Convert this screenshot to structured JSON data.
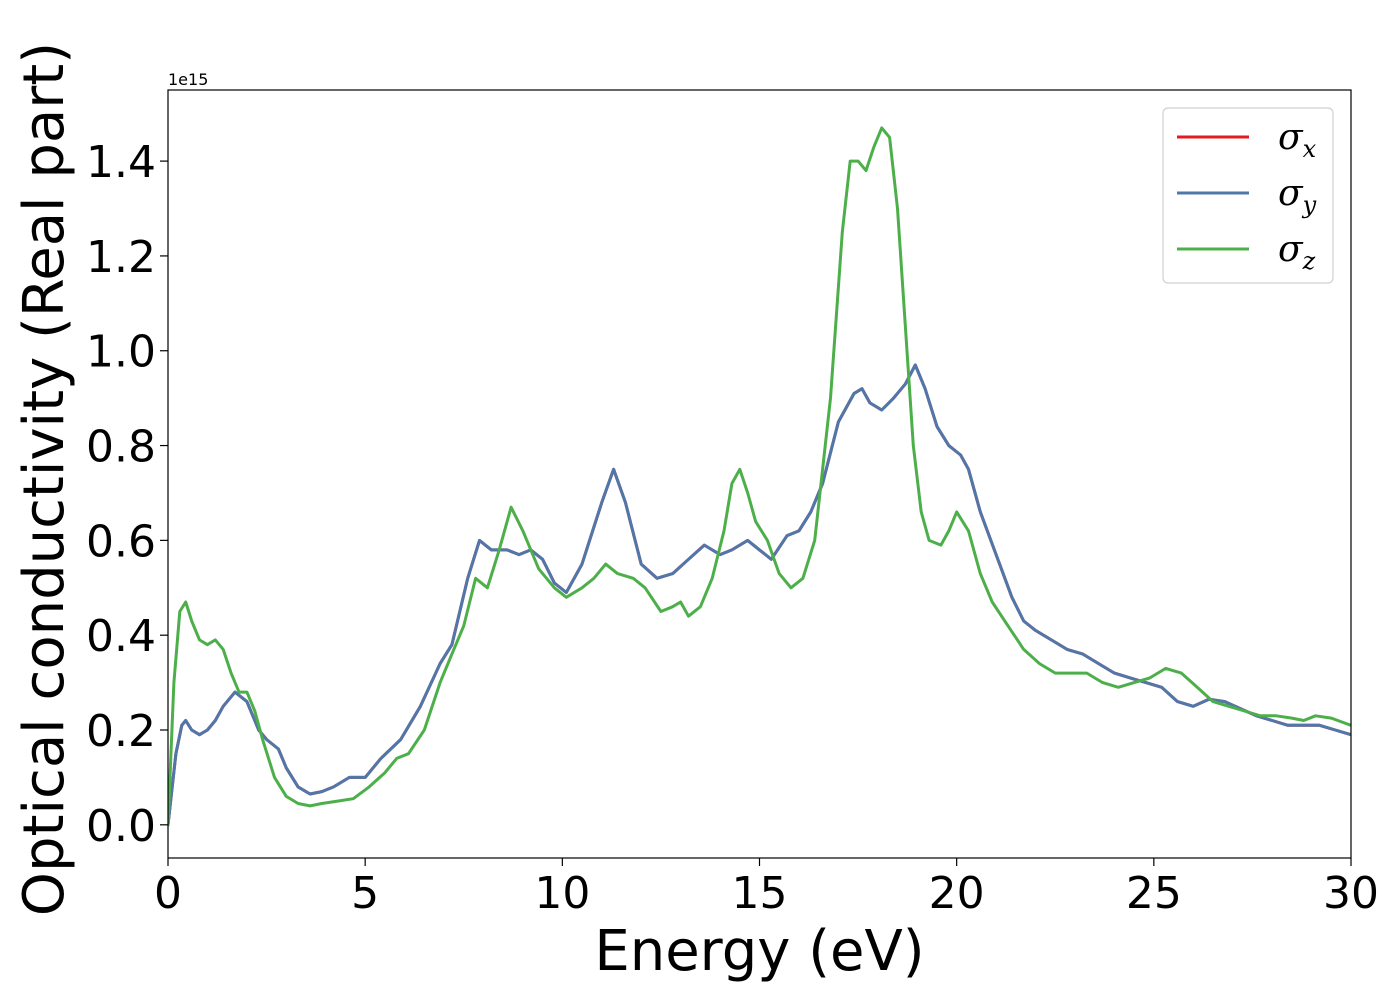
{
  "chart_data": {
    "type": "line",
    "xlabel": "Energy (eV)",
    "ylabel": "Optical conductivity (Real part)",
    "y_offset_label": "1e15",
    "xlim": [
      0,
      30
    ],
    "ylim": [
      -0.07,
      1.55
    ],
    "x_ticks": [
      0,
      5,
      10,
      15,
      20,
      25,
      30
    ],
    "x_tick_labels": [
      "0",
      "5",
      "10",
      "15",
      "20",
      "25",
      "30"
    ],
    "y_ticks": [
      0.0,
      0.2,
      0.4,
      0.6,
      0.8,
      1.0,
      1.2,
      1.4
    ],
    "y_tick_labels": [
      "0.0",
      "0.2",
      "0.4",
      "0.6",
      "0.8",
      "1.0",
      "1.2",
      "1.4"
    ],
    "grid": false,
    "legend_position": "top-right",
    "series": [
      {
        "name": "σx",
        "symbol": "σ",
        "subscript": "x",
        "color": "#e41a1c",
        "x": [
          0,
          0.2,
          0.35,
          0.45,
          0.6,
          0.8,
          1.0,
          1.2,
          1.4,
          1.7,
          2.0,
          2.3,
          2.5,
          2.8,
          3.0,
          3.3,
          3.6,
          3.9,
          4.2,
          4.6,
          5.0,
          5.4,
          5.9,
          6.4,
          6.9,
          7.2,
          7.6,
          7.9,
          8.2,
          8.6,
          8.9,
          9.2,
          9.5,
          9.8,
          10.1,
          10.5,
          11.0,
          11.3,
          11.6,
          12.0,
          12.4,
          12.8,
          13.2,
          13.6,
          14.0,
          14.3,
          14.7,
          15.0,
          15.3,
          15.7,
          16.0,
          16.3,
          16.6,
          17.0,
          17.4,
          17.6,
          17.8,
          18.1,
          18.4,
          18.7,
          18.95,
          19.2,
          19.5,
          19.8,
          20.1,
          20.3,
          20.6,
          21.0,
          21.4,
          21.7,
          22.0,
          22.4,
          22.8,
          23.2,
          23.6,
          24.0,
          24.4,
          24.8,
          25.2,
          25.6,
          26.0,
          26.4,
          26.8,
          27.2,
          27.6,
          28.0,
          28.4,
          28.8,
          29.2,
          29.6,
          30.0
        ],
        "y": [
          0.0,
          0.15,
          0.21,
          0.22,
          0.2,
          0.19,
          0.2,
          0.22,
          0.25,
          0.28,
          0.26,
          0.2,
          0.18,
          0.16,
          0.12,
          0.08,
          0.065,
          0.07,
          0.08,
          0.1,
          0.1,
          0.14,
          0.18,
          0.25,
          0.34,
          0.38,
          0.52,
          0.6,
          0.58,
          0.58,
          0.57,
          0.58,
          0.56,
          0.51,
          0.49,
          0.55,
          0.68,
          0.75,
          0.68,
          0.55,
          0.52,
          0.53,
          0.56,
          0.59,
          0.57,
          0.58,
          0.6,
          0.58,
          0.56,
          0.61,
          0.62,
          0.66,
          0.72,
          0.85,
          0.91,
          0.92,
          0.89,
          0.875,
          0.9,
          0.93,
          0.97,
          0.92,
          0.84,
          0.8,
          0.78,
          0.75,
          0.66,
          0.57,
          0.48,
          0.43,
          0.41,
          0.39,
          0.37,
          0.36,
          0.34,
          0.32,
          0.31,
          0.3,
          0.29,
          0.26,
          0.25,
          0.265,
          0.26,
          0.245,
          0.23,
          0.22,
          0.21,
          0.21,
          0.21,
          0.2,
          0.19
        ]
      },
      {
        "name": "σy",
        "symbol": "σ",
        "subscript": "y",
        "color": "#4f77aa",
        "x": [
          0,
          0.2,
          0.35,
          0.45,
          0.6,
          0.8,
          1.0,
          1.2,
          1.4,
          1.7,
          2.0,
          2.3,
          2.5,
          2.8,
          3.0,
          3.3,
          3.6,
          3.9,
          4.2,
          4.6,
          5.0,
          5.4,
          5.9,
          6.4,
          6.9,
          7.2,
          7.6,
          7.9,
          8.2,
          8.6,
          8.9,
          9.2,
          9.5,
          9.8,
          10.1,
          10.5,
          11.0,
          11.3,
          11.6,
          12.0,
          12.4,
          12.8,
          13.2,
          13.6,
          14.0,
          14.3,
          14.7,
          15.0,
          15.3,
          15.7,
          16.0,
          16.3,
          16.6,
          17.0,
          17.4,
          17.6,
          17.8,
          18.1,
          18.4,
          18.7,
          18.95,
          19.2,
          19.5,
          19.8,
          20.1,
          20.3,
          20.6,
          21.0,
          21.4,
          21.7,
          22.0,
          22.4,
          22.8,
          23.2,
          23.6,
          24.0,
          24.4,
          24.8,
          25.2,
          25.6,
          26.0,
          26.4,
          26.8,
          27.2,
          27.6,
          28.0,
          28.4,
          28.8,
          29.2,
          29.6,
          30.0
        ],
        "y": [
          0.0,
          0.15,
          0.21,
          0.22,
          0.2,
          0.19,
          0.2,
          0.22,
          0.25,
          0.28,
          0.26,
          0.2,
          0.18,
          0.16,
          0.12,
          0.08,
          0.065,
          0.07,
          0.08,
          0.1,
          0.1,
          0.14,
          0.18,
          0.25,
          0.34,
          0.38,
          0.52,
          0.6,
          0.58,
          0.58,
          0.57,
          0.58,
          0.56,
          0.51,
          0.49,
          0.55,
          0.68,
          0.75,
          0.68,
          0.55,
          0.52,
          0.53,
          0.56,
          0.59,
          0.57,
          0.58,
          0.6,
          0.58,
          0.56,
          0.61,
          0.62,
          0.66,
          0.72,
          0.85,
          0.91,
          0.92,
          0.89,
          0.875,
          0.9,
          0.93,
          0.97,
          0.92,
          0.84,
          0.8,
          0.78,
          0.75,
          0.66,
          0.57,
          0.48,
          0.43,
          0.41,
          0.39,
          0.37,
          0.36,
          0.34,
          0.32,
          0.31,
          0.3,
          0.29,
          0.26,
          0.25,
          0.265,
          0.26,
          0.245,
          0.23,
          0.22,
          0.21,
          0.21,
          0.21,
          0.2,
          0.19
        ]
      },
      {
        "name": "σz",
        "symbol": "σ",
        "subscript": "z",
        "color": "#4daf4a",
        "x": [
          0,
          0.15,
          0.3,
          0.45,
          0.6,
          0.8,
          1.0,
          1.2,
          1.4,
          1.6,
          1.8,
          2.0,
          2.2,
          2.4,
          2.7,
          3.0,
          3.3,
          3.6,
          3.9,
          4.3,
          4.7,
          5.1,
          5.5,
          5.8,
          6.1,
          6.5,
          6.9,
          7.2,
          7.5,
          7.8,
          8.1,
          8.4,
          8.7,
          9.0,
          9.4,
          9.8,
          10.1,
          10.5,
          10.8,
          11.1,
          11.4,
          11.8,
          12.1,
          12.5,
          12.8,
          13.0,
          13.2,
          13.5,
          13.8,
          14.1,
          14.3,
          14.5,
          14.7,
          14.9,
          15.2,
          15.5,
          15.8,
          16.1,
          16.4,
          16.8,
          17.1,
          17.3,
          17.5,
          17.7,
          17.9,
          18.1,
          18.3,
          18.5,
          18.7,
          18.9,
          19.1,
          19.3,
          19.6,
          19.8,
          20.0,
          20.3,
          20.6,
          20.9,
          21.3,
          21.7,
          22.1,
          22.5,
          22.9,
          23.3,
          23.7,
          24.1,
          24.5,
          24.9,
          25.3,
          25.7,
          26.1,
          26.5,
          26.9,
          27.3,
          27.7,
          28.1,
          28.5,
          28.8,
          29.1,
          29.5,
          30.0
        ],
        "y": [
          0.0,
          0.3,
          0.45,
          0.47,
          0.43,
          0.39,
          0.38,
          0.39,
          0.37,
          0.32,
          0.28,
          0.28,
          0.24,
          0.18,
          0.1,
          0.06,
          0.045,
          0.04,
          0.045,
          0.05,
          0.055,
          0.08,
          0.11,
          0.14,
          0.15,
          0.2,
          0.3,
          0.36,
          0.42,
          0.52,
          0.5,
          0.58,
          0.67,
          0.62,
          0.54,
          0.5,
          0.48,
          0.5,
          0.52,
          0.55,
          0.53,
          0.52,
          0.5,
          0.45,
          0.46,
          0.47,
          0.44,
          0.46,
          0.52,
          0.62,
          0.72,
          0.75,
          0.7,
          0.64,
          0.6,
          0.53,
          0.5,
          0.52,
          0.6,
          0.9,
          1.25,
          1.4,
          1.4,
          1.38,
          1.43,
          1.47,
          1.45,
          1.3,
          1.05,
          0.8,
          0.66,
          0.6,
          0.59,
          0.62,
          0.66,
          0.62,
          0.53,
          0.47,
          0.42,
          0.37,
          0.34,
          0.32,
          0.32,
          0.32,
          0.3,
          0.29,
          0.3,
          0.31,
          0.33,
          0.32,
          0.29,
          0.26,
          0.25,
          0.24,
          0.23,
          0.23,
          0.225,
          0.22,
          0.23,
          0.225,
          0.21
        ]
      }
    ]
  }
}
